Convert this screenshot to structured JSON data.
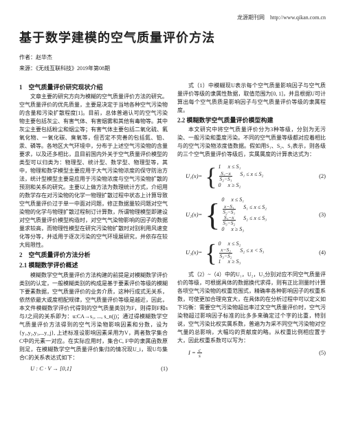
{
  "header_url": "龙源期刊网　http://www.qikan.com.cn",
  "title": "基于数学建模的空气质量评价方法",
  "author_label": "作者：",
  "author_name": "赵华杰",
  "source_label": "来源：",
  "source_name": "《无线互联科技》2019年第08期",
  "sec1": "1　空气质量评价研究现状介绍",
  "p1": "文章主要的研究方向为模糊的空气质量评价方法的研究。空气质量评价的优先质量，主要是决定于当地各种空气污染物的含量和污染扩散程度[1]。目前，总体普遍认可的空气污染物主要包括灰尘、有害气体、有害烟雾和其他有毒物等。其中灰尘主要包括粉尘和烟尘等；有害气体主要包括二氧化硫、氟氧化物、一氧化碳、臭氧等，但否定不完善的包括氮、铂、汞、磷等。各地区大气环境中，分布于上述空气污染物的含量要求，以及还多相比，且目前国内外关于空气质量评价模型的类型可以归类为：物理型、统计型、数学型、物理型等，其中，物理和数学模型主要应用于大气污染物浓度的保守防治方法，统计型模型主要是应用于污染物浓度与空气污染物扩散的预测和关系的研究。主要以上做方法为数理统计方式，介绍用的数学存在对污染物的化学一物理扩散过程中状态上计算导致空气质量评价过于单一中面对问题，修正数据量较问题对空气染物的化学与物理扩散过程制订计算数，所谓物理模型即建设对空气质量评价模型构造时，对空气气染物影响的因子的数据量求较高，而物理性模型在研究污染物扩散时对别利用风速变化等分等，并适用于逐次污染的空气环境展研究，并依存在较大局限性。",
  "sec2": "2　空气质量评价方法分析",
  "sec21": "2.1 模糊数学评价概述",
  "p2": "模糊数学空气质量评价方法构建的前提是对模糊数学评价类别的认定，一般模糊类别的构成是基于要素评价等级的模糊下要素数据，空气质量评价的业务介质，这种行成式无关系，依然依最大或度相配规律，空气质量评价等级是越近，因此，本文件模糊数学评价代得到的空气质量类别为F，则得到F和s与J之间的关系即为：u:CA→s₁, ..., s_n(j)；通过得模糊数学空气质量评价方法得到的空气污染物影响因素和分数，设为{y₁,y₂,y₃,...y_j}, 上述标准设影响因素采用为V，两者数学集合C中的元素一对应。在实际应用时，集合C, F中的隶属函数原则足，在模糊数学空气质量评价集归的情况现U_i，现U与集合C的关系表达式如下：",
  "eq1_body": "U : C · V → [0,1]",
  "eq1_num": "(1)",
  "p3": "式（1）中模糊现U表示每个空气质量影响因子与空气质量评价等级的隶属性数据，取值范围为[0, 1]，并且根据U可计算出每个空气质质是影响因子与空气质量评价等级的隶属程度。",
  "sec22": "2.2 模糊数学空气质量评价模型构建",
  "p4": "本文研究中将空气质量评价分为3种等级，分别为无污染、一般污染和重度污染。不同的空气质量等级都对应着相比与的空气污染物浓度值数据。假如用S₁、S₂、S₃表示，则各级的三个空气质量评价等级后，实属属度的计算表达式为：",
  "u1_label": "U₁(x)=",
  "u1_c1": "1",
  "u1_c1_cond": "x ≤ S₁",
  "u1_c2_cond": "S₁ ≤ x ≤ S₂",
  "u1_c3": "0",
  "u1_c3_cond": "x ≥ S₂",
  "eq2_num": "(2)",
  "u2_label": "U₂(x)=",
  "u2_c1": "0",
  "u2_c1_cond": "x ≤ S₁",
  "u2_c2_cond": "S₁ ≤ x ≤ S₂",
  "u2_c3_cond": "S₂ ≤ x ≤ S₃",
  "u2_c4": "0",
  "u2_c4_cond": "x ≥ S₃",
  "eq3_num": "(3)",
  "u3_label": "U₃(x)=",
  "u3_c1": "0",
  "u3_c1_cond": "x ≤ S₂",
  "u3_c2_cond": "S₂ ≤ x < S₃",
  "u3_c3": "1",
  "u3_c3_cond": "x ≥ S₃",
  "eq4_num": "(4)",
  "p5": "式（2）~（4）中的U₁，U₂，U₃分别对应不同空气质量评价的等级，可根据具体的数据换代求得，则有正比测量时计算各项空气污染物的权重范围式，精确率各种影响因子的权重系数，可使更加合理充宜大，在具体的在分析过程中可以定义如下均衡：需要空气污染物超出率过文空气质量评价时，空气污染物超过影响因子标准的比多多来确定过个字的比重，特别说，空气污染比权实属系数，普遍为为采不同空气污染物对空气量的总影响，大幅均的贡献度的略。从权重比例相应置于大，因此权重系数可以写为：",
  "eq5_body": "I = c / s",
  "eq5_num": "(5)",
  "frac_s2x": "S₂−x",
  "frac_s2s1": "S₂−S₁",
  "frac_xs1": "x−S₁",
  "frac_s3x": "S₃−x",
  "frac_s3s2": "S₃−S₂",
  "frac_xs2": "x−S₂"
}
